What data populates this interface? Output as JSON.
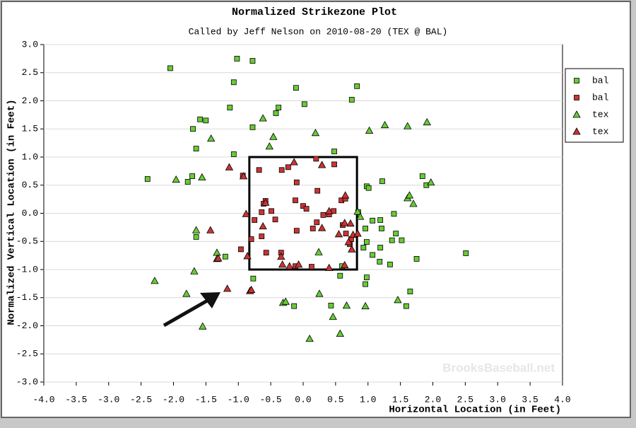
{
  "chart_data": {
    "type": "scatter",
    "title": "Normalized Strikezone Plot",
    "subtitle": "Called by Jeff Nelson on 2010-08-20 (TEX @ BAL)",
    "x_label": "Horizontal Location (in Feet)",
    "y_label": "Normalized Vertical Location (in Feet)",
    "watermark": "BrooksBaseball.net",
    "xlim": [
      -4,
      4
    ],
    "ylim": [
      -3,
      3
    ],
    "xticks": [
      {
        "value": -4,
        "label": "-4.0"
      },
      {
        "value": -3.5,
        "label": "-3.5"
      },
      {
        "value": -3,
        "label": "-3.0"
      },
      {
        "value": -2.5,
        "label": "-2.5"
      },
      {
        "value": -2,
        "label": "-2.0"
      },
      {
        "value": -1.5,
        "label": "-1.5"
      },
      {
        "value": -1,
        "label": "-1.0"
      },
      {
        "value": -0.5,
        "label": "-0.5"
      },
      {
        "value": 0,
        "label": "0.0"
      },
      {
        "value": 0.5,
        "label": "0.5"
      },
      {
        "value": 1,
        "label": "1.0"
      },
      {
        "value": 1.5,
        "label": "1.5"
      },
      {
        "value": 2,
        "label": "2.0"
      },
      {
        "value": 2.5,
        "label": "2.5"
      },
      {
        "value": 3,
        "label": "3.0"
      },
      {
        "value": 3.5,
        "label": "3.5"
      },
      {
        "value": 4,
        "label": "4.0"
      }
    ],
    "yticks": [
      {
        "value": -3,
        "label": "-3.0"
      },
      {
        "value": -2.5,
        "label": "-2.5"
      },
      {
        "value": -2,
        "label": "-2.0"
      },
      {
        "value": -1.5,
        "label": "-1.5"
      },
      {
        "value": -1,
        "label": "-1.0"
      },
      {
        "value": -0.5,
        "label": "-0.5"
      },
      {
        "value": 0,
        "label": "0.0"
      },
      {
        "value": 0.5,
        "label": "0.5"
      },
      {
        "value": 1,
        "label": "1.0"
      },
      {
        "value": 1.5,
        "label": "1.5"
      },
      {
        "value": 2,
        "label": "2.0"
      },
      {
        "value": 2.5,
        "label": "2.5"
      },
      {
        "value": 3,
        "label": "3.0"
      }
    ],
    "grid": true,
    "legend": "upper right",
    "strike_zone": {
      "x": [
        -0.83,
        0.83
      ],
      "y": [
        -1,
        1
      ]
    },
    "series": [
      {
        "name": "bal",
        "color": "#66cc33",
        "marker": "square",
        "x": [
          -2.05,
          -1.02,
          -0.78,
          -1.07,
          -0.11,
          0.83,
          0.75,
          0.02,
          -1.13,
          -0.38,
          -0.42,
          -1.59,
          -1.5,
          -1.7,
          -0.78,
          -1.65,
          -1.07,
          0.48,
          -2.4,
          -1.71,
          -1.78,
          0.98,
          1.01,
          1.22,
          1.84,
          1.9,
          0.85,
          1.07,
          1.19,
          1.4,
          0.96,
          1.21,
          1.43,
          1.37,
          1.52,
          0.98,
          0.93,
          1.19,
          1.07,
          -1.65,
          -1.2,
          1.18,
          1.34,
          1.75,
          2.51,
          0.6,
          0.57,
          0.98,
          0.96,
          -0.77,
          1.65,
          1.59,
          -0.14,
          0.43
        ],
        "values": [
          2.58,
          2.75,
          2.71,
          2.33,
          2.23,
          2.26,
          2.02,
          1.94,
          1.88,
          1.88,
          1.78,
          1.67,
          1.65,
          1.5,
          1.53,
          1.15,
          1.05,
          1.1,
          0.61,
          0.66,
          0.56,
          0.48,
          0.45,
          0.57,
          0.66,
          0.5,
          0.02,
          -0.13,
          -0.12,
          -0.01,
          -0.27,
          -0.27,
          -0.36,
          -0.48,
          -0.48,
          -0.51,
          -0.61,
          -0.61,
          -0.74,
          -0.42,
          -0.77,
          -0.86,
          -0.91,
          -0.81,
          -0.71,
          -0.94,
          -1.11,
          -1.14,
          -1.26,
          -1.16,
          -1.39,
          -1.65,
          -1.65,
          -1.64
        ]
      },
      {
        "name": "bal",
        "color": "#cc3333",
        "marker": "square",
        "x": [
          0.2,
          -0.68,
          -0.33,
          -0.23,
          0.48,
          -0.93,
          -0.1,
          0.22,
          -0.58,
          -0.61,
          -0.12,
          0.59,
          0.65,
          0,
          0.05,
          -0.64,
          -0.49,
          0.31,
          0.4,
          0.47,
          -0.43,
          -0.75,
          0.21,
          0.61,
          0.66,
          0.15,
          -0.1,
          -0.64,
          -0.8,
          0.74,
          0.72,
          -0.57,
          -0.34,
          -0.12,
          0.13,
          -0.96
        ],
        "values": [
          0.97,
          0.77,
          0.77,
          0.82,
          0.87,
          0.67,
          0.55,
          0.4,
          0.22,
          0.17,
          0.23,
          0.23,
          0.26,
          0.13,
          0.08,
          0.02,
          0.04,
          -0.03,
          -0.02,
          0.04,
          -0.11,
          -0.12,
          -0.16,
          -0.21,
          -0.36,
          -0.27,
          -0.31,
          -0.41,
          -0.46,
          -0.46,
          -0.55,
          -0.7,
          -0.7,
          -0.94,
          -0.95,
          -0.64
        ]
      },
      {
        "name": "tex",
        "color": "#66cc33",
        "marker": "triangle",
        "x": [
          -0.62,
          -0.46,
          -0.52,
          0.19,
          -1.42,
          1.02,
          1.26,
          1.61,
          1.91,
          -1.96,
          -1.56,
          1.61,
          1.64,
          1.97,
          1.7,
          0.84,
          0.88,
          -1.65,
          -1.33,
          0.24,
          -1.33,
          -1.68,
          -2.29,
          -1.8,
          0.25,
          1.46,
          -0.31,
          -0.27,
          0.46,
          0.67,
          0.96,
          -1.55,
          0.57,
          0.1
        ],
        "values": [
          1.69,
          1.36,
          1.19,
          1.43,
          1.33,
          1.47,
          1.57,
          1.55,
          1.62,
          0.6,
          0.64,
          0.27,
          0.32,
          0.55,
          0.17,
          0.03,
          -0.06,
          -0.3,
          -0.7,
          -0.69,
          -0.81,
          -1.03,
          -1.2,
          -1.43,
          -1.43,
          -1.54,
          -1.59,
          -1.57,
          -1.84,
          -1.64,
          -1.65,
          -2.01,
          -2.14,
          -2.23
        ]
      },
      {
        "name": "tex",
        "color": "#cc3333",
        "marker": "triangle",
        "x": [
          -1.14,
          -0.92,
          -0.14,
          0.29,
          0.65,
          -0.58,
          -0.88,
          -0.62,
          0.4,
          0.29,
          0.64,
          0.73,
          0.55,
          0.77,
          0.7,
          0.75,
          0.84,
          -1.43,
          -1.31,
          -0.86,
          -0.34,
          -0.32,
          -0.21,
          -0.07,
          0.4,
          0.64,
          -0.82,
          -0.8,
          -1.17
        ],
        "values": [
          0.82,
          0.66,
          0.91,
          0.86,
          0.32,
          0.19,
          -0.01,
          -0.23,
          0.04,
          -0.26,
          -0.17,
          -0.18,
          -0.37,
          -0.38,
          -0.51,
          -0.64,
          -0.36,
          -0.3,
          -0.8,
          -0.76,
          -0.77,
          -0.91,
          -0.94,
          -0.91,
          -0.97,
          -0.92,
          -1.38,
          -1.36,
          -1.34
        ]
      }
    ]
  }
}
